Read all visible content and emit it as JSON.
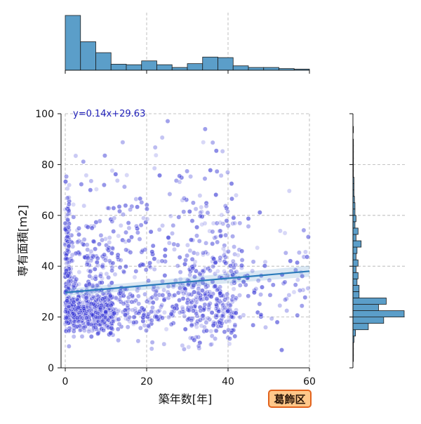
{
  "chart_data": {
    "type": "scatter",
    "xlabel": "築年数[年]",
    "ylabel": "専有面積[m2]",
    "xlim": [
      0,
      60
    ],
    "ylim": [
      0,
      100
    ],
    "xticks": [
      "0",
      "20",
      "40",
      "60"
    ],
    "yticks": [
      "0",
      "20",
      "40",
      "60",
      "80",
      "100"
    ],
    "grid": true,
    "regression": {
      "label": "y=0.14x+29.63",
      "slope": 0.14,
      "intercept": 29.63,
      "color": "#2b7bba"
    },
    "badge": "葛飾区",
    "point_color": "#3a3ad6",
    "hist_color": "#5b9ec9",
    "marginal_x_hist": {
      "bin_edges": [
        0,
        3.75,
        7.5,
        11.25,
        15,
        18.75,
        22.5,
        26.25,
        30,
        33.75,
        37.5,
        41.25,
        45,
        48.75,
        52.5,
        56.25,
        60
      ],
      "counts": [
        100,
        52,
        32,
        11,
        10,
        17,
        10,
        5,
        12,
        24,
        23,
        8,
        5,
        5,
        3,
        2
      ]
    },
    "marginal_y_hist": {
      "bin_edges": [
        0,
        2.5,
        5,
        7.5,
        10,
        12.5,
        15,
        17.5,
        20,
        22.5,
        25,
        27.5,
        30,
        32.5,
        35,
        37.5,
        40,
        42.5,
        45,
        47.5,
        50,
        52.5,
        55,
        57.5,
        60,
        62.5,
        65,
        67.5,
        70,
        72.5,
        75,
        77.5,
        80,
        82.5,
        85,
        87.5,
        90,
        92.5,
        95,
        97.5,
        100
      ],
      "counts": [
        0,
        1,
        1,
        1,
        2,
        5,
        30,
        60,
        100,
        50,
        65,
        12,
        12,
        8,
        10,
        6,
        10,
        6,
        8,
        16,
        6,
        10,
        4,
        6,
        4,
        4,
        3,
        2,
        2,
        2,
        1,
        1,
        1,
        1,
        1,
        1,
        0,
        1,
        0,
        0
      ]
    }
  }
}
